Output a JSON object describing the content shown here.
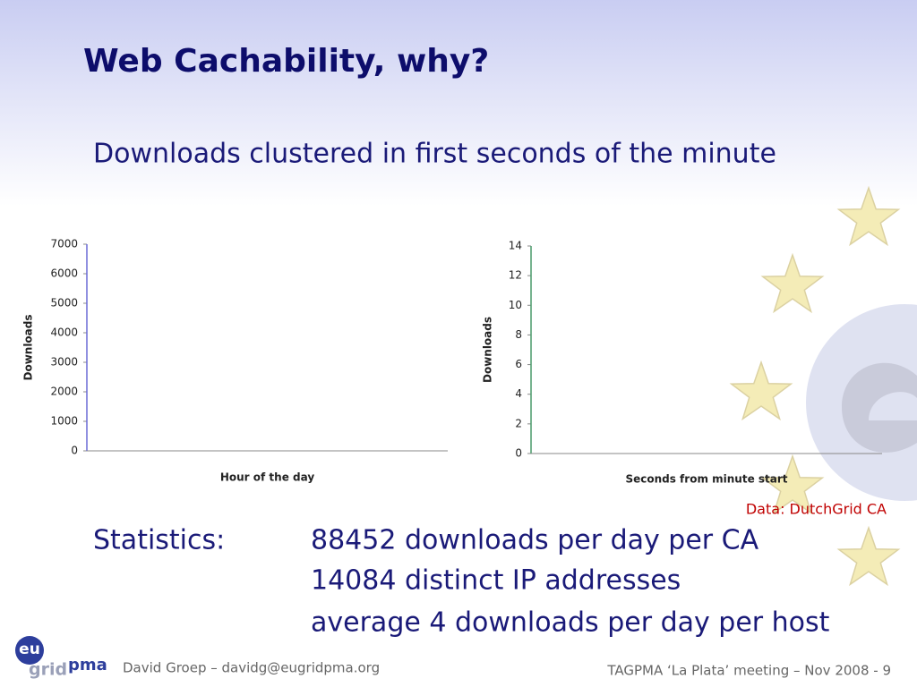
{
  "title": "Web Cachability, why?",
  "subtitle": "Downloads clustered in first seconds of the minute",
  "chart_data": [
    {
      "type": "bar",
      "x_label": "Hour of the day",
      "y_label": "Downloads",
      "ylim": [
        0,
        7000
      ],
      "yticks": [
        0,
        1000,
        2000,
        3000,
        4000,
        5000,
        6000,
        7000
      ]
    },
    {
      "type": "bar",
      "x_label": "Seconds from minute start",
      "y_label": "Downloads",
      "ylim": [
        0,
        14
      ],
      "yticks": [
        0,
        2,
        4,
        6,
        8,
        10,
        12,
        14
      ]
    }
  ],
  "note": "Data: DutchGrid CA",
  "statistics": {
    "label": "Statistics:",
    "lines": [
      "88452 downloads per day per CA",
      "14084 distinct IP addresses",
      "average 4 downloads per day per host"
    ]
  },
  "logo": {
    "part1": "eu",
    "part2": "grid",
    "part3": "pma"
  },
  "footer": {
    "author": "David Groep – davidg@eugridpma.org",
    "meeting": "TAGPMA ‘La Plata’ meeting – Nov 2008 - 9"
  }
}
